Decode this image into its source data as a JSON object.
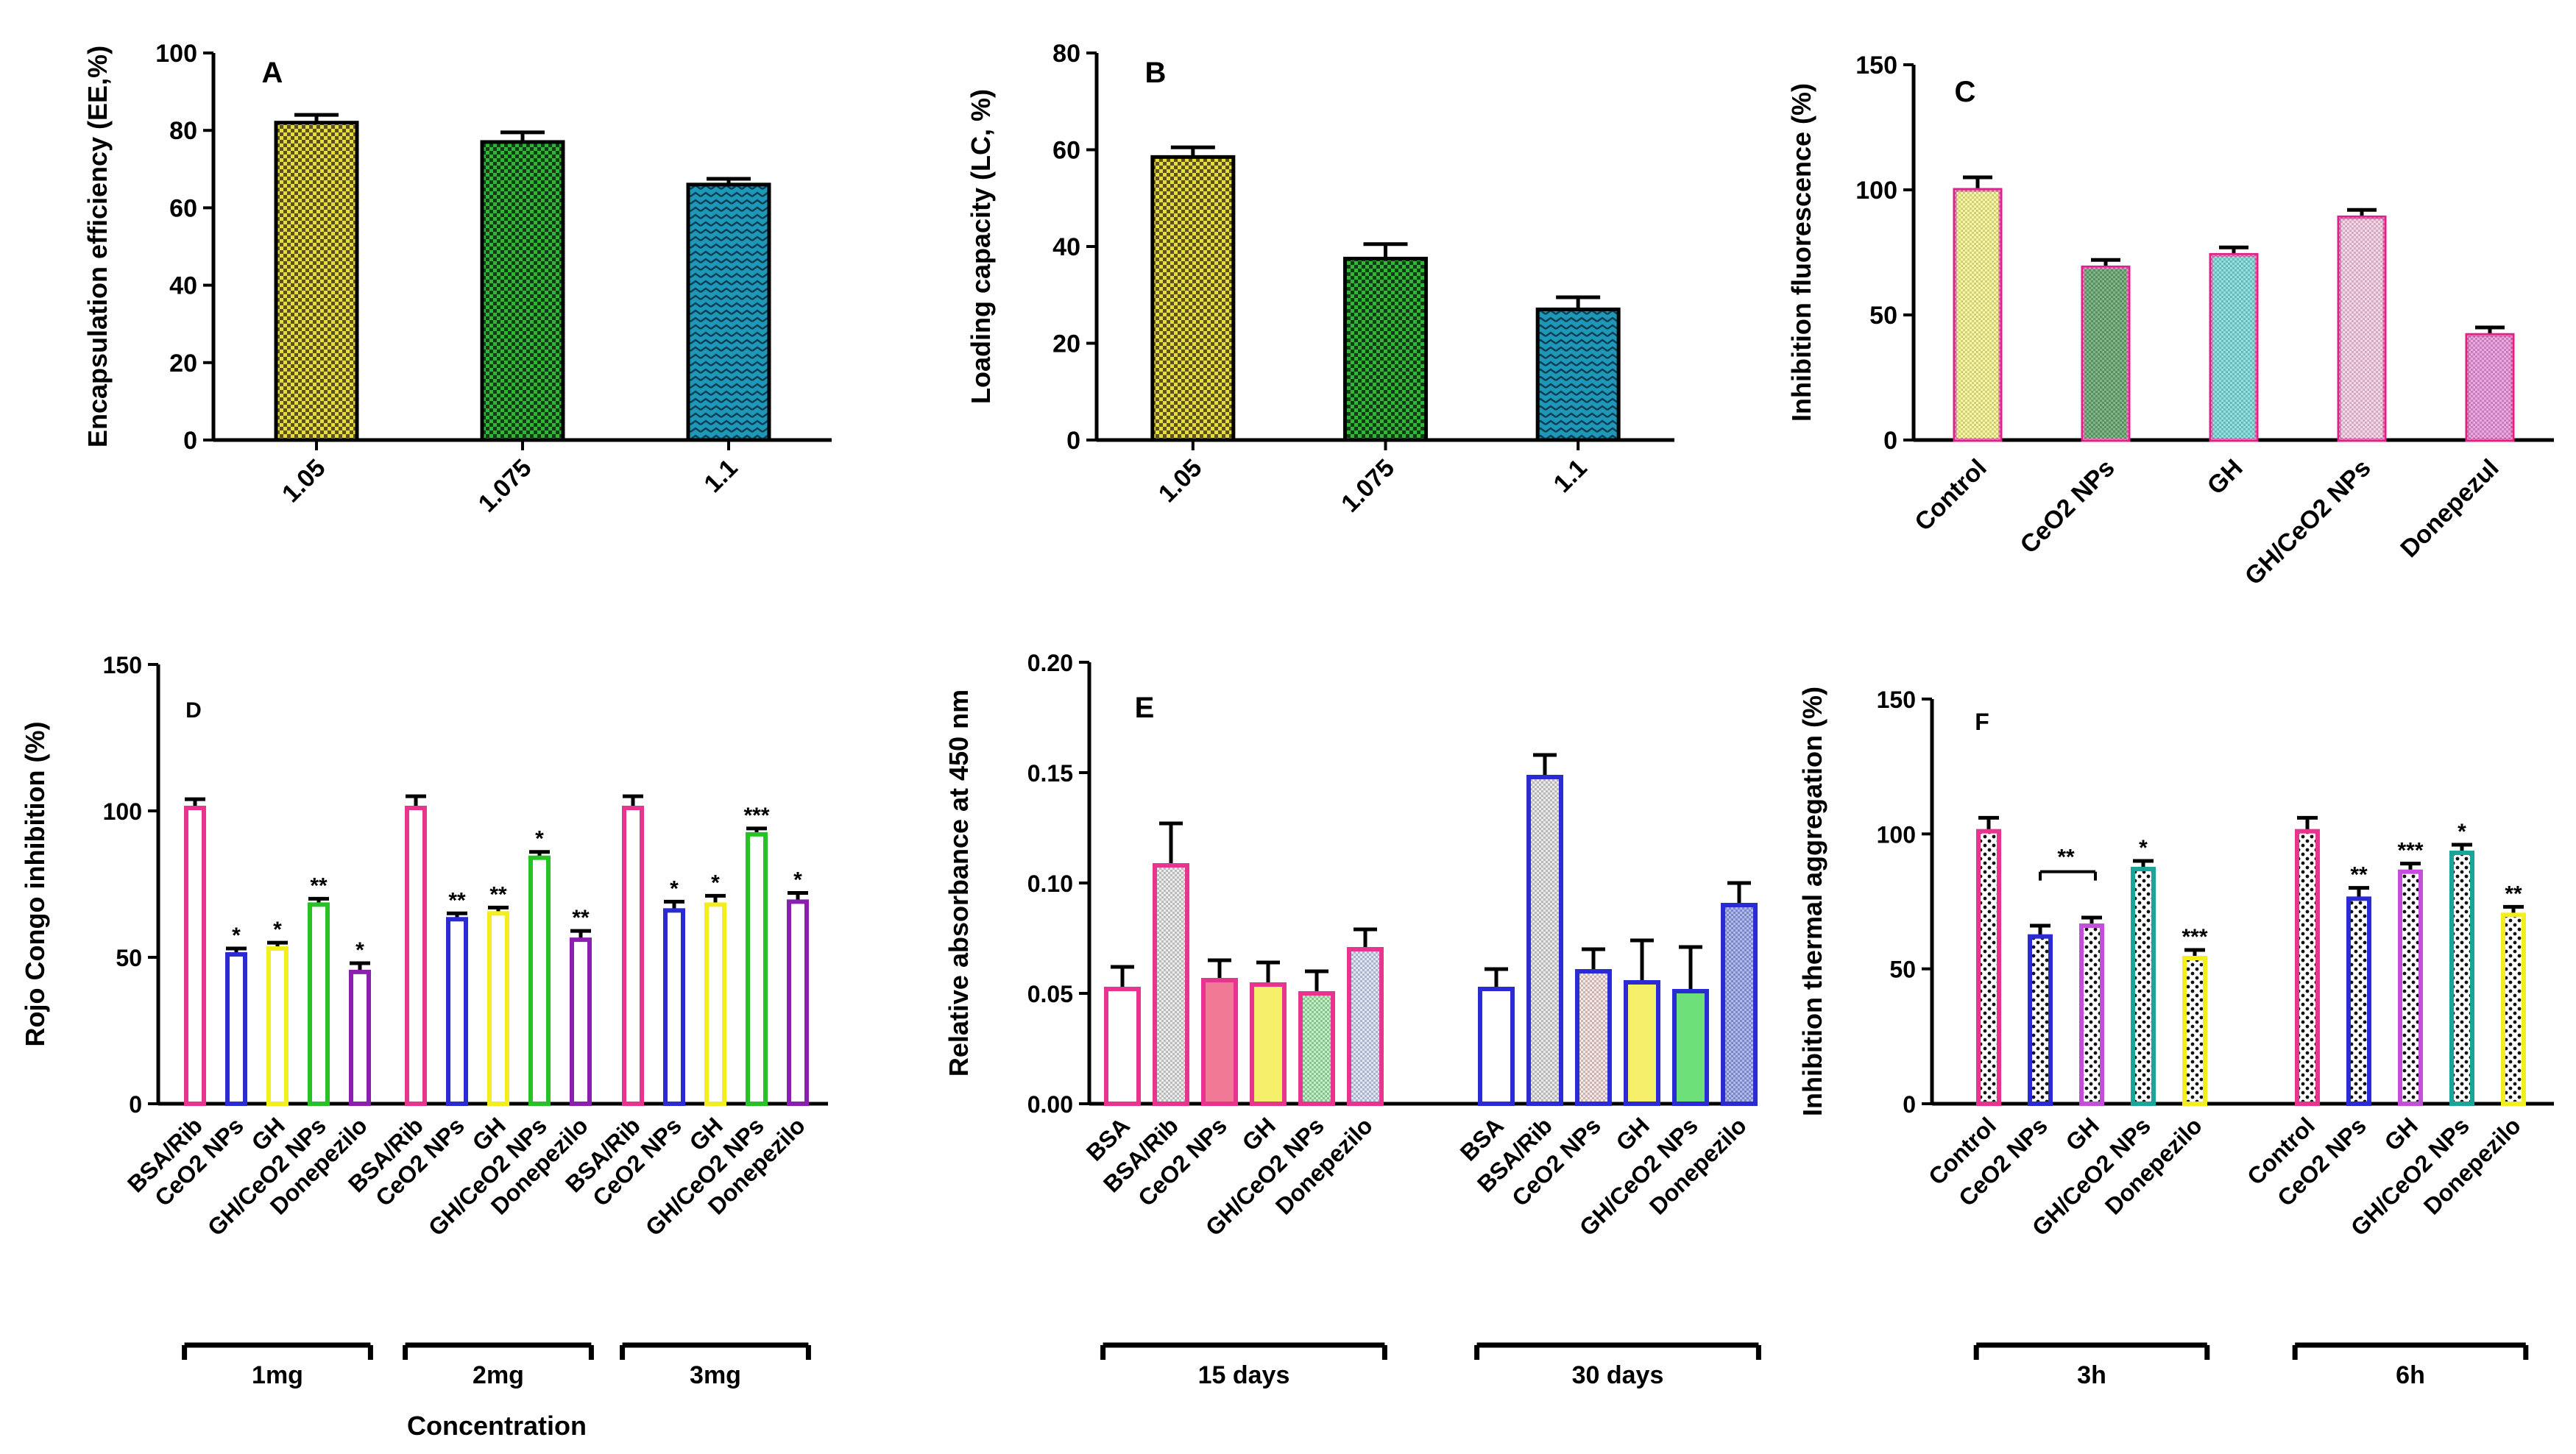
{
  "chart_data": [
    {
      "id": "A",
      "type": "bar",
      "panel_label": "A",
      "ylabel": "Encapsulation efficiency (EE,%)",
      "ylim": [
        0,
        100
      ],
      "yticks": [
        "0",
        "20",
        "40",
        "60",
        "80",
        "100"
      ],
      "categories": [
        "1.05",
        "1.075",
        "1.1"
      ],
      "series": [
        {
          "name": "EE",
          "values": [
            82,
            77,
            66
          ],
          "errors": [
            2,
            2.5,
            1.5
          ],
          "colors": [
            "#e6dc3c",
            "#22a12a",
            "#1f97b8"
          ]
        }
      ]
    },
    {
      "id": "B",
      "type": "bar",
      "panel_label": "B",
      "ylabel": "Loading capacity (LC, %)",
      "ylim": [
        0,
        80
      ],
      "yticks": [
        "0",
        "20",
        "40",
        "60",
        "80"
      ],
      "categories": [
        "1.05",
        "1.075",
        "1.1"
      ],
      "series": [
        {
          "name": "LC",
          "values": [
            58.5,
            37.5,
            27
          ],
          "errors": [
            2,
            3,
            2.5
          ],
          "colors": [
            "#e6dc3c",
            "#22a12a",
            "#1f97b8"
          ]
        }
      ]
    },
    {
      "id": "C",
      "type": "bar",
      "panel_label": "C",
      "ylabel": "Inhibition fluorescence (%)",
      "ylim": [
        0,
        150
      ],
      "yticks": [
        "0",
        "50",
        "100",
        "150"
      ],
      "categories": [
        "Control",
        "CeO2 NPs",
        "GH",
        "GH/CeO2 NPs",
        "Donepezul"
      ],
      "series": [
        {
          "name": "Inhibition",
          "values": [
            100,
            69,
            74,
            89,
            42
          ],
          "errors": [
            5,
            3,
            3,
            3,
            3
          ],
          "colors": [
            "#f3f05a",
            "#1e7a28",
            "#3ac8c8",
            "#f2b3d6",
            "#e060c8"
          ]
        }
      ]
    },
    {
      "id": "D",
      "type": "bar",
      "panel_label": "D",
      "ylabel": "Rojo Congo inhibition (%)",
      "xlabel": "Concentration",
      "ylim": [
        0,
        150
      ],
      "yticks": [
        "0",
        "50",
        "100",
        "150"
      ],
      "groups": [
        "1mg",
        "2mg",
        "3mg"
      ],
      "categories": [
        "BSA/Rib",
        "CeO2 NPs",
        "GH",
        "GH/CeO2 NPs",
        "Donepezilo"
      ],
      "series": [
        {
          "name": "1mg",
          "values": [
            101,
            51,
            53,
            68,
            45
          ],
          "errors": [
            3,
            2,
            2,
            2,
            3
          ],
          "stars": [
            "",
            "*",
            "*",
            "**",
            "*"
          ]
        },
        {
          "name": "2mg",
          "values": [
            101,
            63,
            65,
            84,
            56
          ],
          "errors": [
            4,
            2,
            2,
            2,
            3
          ],
          "stars": [
            "",
            "**",
            "**",
            "*",
            "**"
          ]
        },
        {
          "name": "3mg",
          "values": [
            101,
            66,
            68,
            92,
            69
          ],
          "errors": [
            4,
            3,
            3,
            2,
            3
          ],
          "stars": [
            "",
            "*",
            "*",
            "***",
            "*"
          ]
        }
      ],
      "colors": [
        "#e8338f",
        "#2b2bd6",
        "#f4ee1e",
        "#26c226",
        "#8a1fb0"
      ]
    },
    {
      "id": "E",
      "type": "bar",
      "panel_label": "E",
      "ylabel": "Relative absorbance at 450 nm",
      "ylim": [
        0,
        0.2
      ],
      "yticks": [
        "0.00",
        "0.05",
        "0.10",
        "0.15",
        "0.20"
      ],
      "groups": [
        "15 days",
        "30 days"
      ],
      "categories": [
        "BSA",
        "BSA/Rib",
        "CeO2 NPs",
        "GH",
        "GH/CeO2 NPs",
        "Donepezilo"
      ],
      "series": [
        {
          "name": "15 days",
          "values": [
            0.052,
            0.108,
            0.056,
            0.054,
            0.05,
            0.07
          ],
          "errors": [
            0.01,
            0.019,
            0.009,
            0.01,
            0.01,
            0.009
          ]
        },
        {
          "name": "30 days",
          "values": [
            0.052,
            0.148,
            0.06,
            0.055,
            0.051,
            0.09
          ],
          "errors": [
            0.009,
            0.01,
            0.01,
            0.019,
            0.02,
            0.01
          ]
        }
      ]
    },
    {
      "id": "F",
      "type": "bar",
      "panel_label": "F",
      "ylabel": "Inhibition thermal aggregation (%)",
      "ylim": [
        0,
        150
      ],
      "yticks": [
        "0",
        "50",
        "100",
        "150"
      ],
      "groups": [
        "3h",
        "6h"
      ],
      "categories": [
        "Control",
        "CeO2 NPs",
        "GH",
        "GH/CeO2 NPs",
        "Donepezilo"
      ],
      "series": [
        {
          "name": "3h",
          "values": [
            101,
            62,
            66,
            87,
            54
          ],
          "errors": [
            5,
            4,
            3,
            3,
            3
          ],
          "stars": [
            "",
            "",
            "",
            "*",
            "***"
          ]
        },
        {
          "name": "6h",
          "values": [
            101,
            76,
            86,
            93,
            70
          ],
          "errors": [
            5,
            4,
            3,
            3,
            3
          ],
          "stars": [
            "",
            "**",
            "***",
            "*",
            "**"
          ]
        }
      ],
      "bracket_label": "**",
      "colors": [
        "#e8338f",
        "#2b2bd6",
        "#c44fd8",
        "#1aa59a",
        "#f4ee1e"
      ]
    }
  ]
}
